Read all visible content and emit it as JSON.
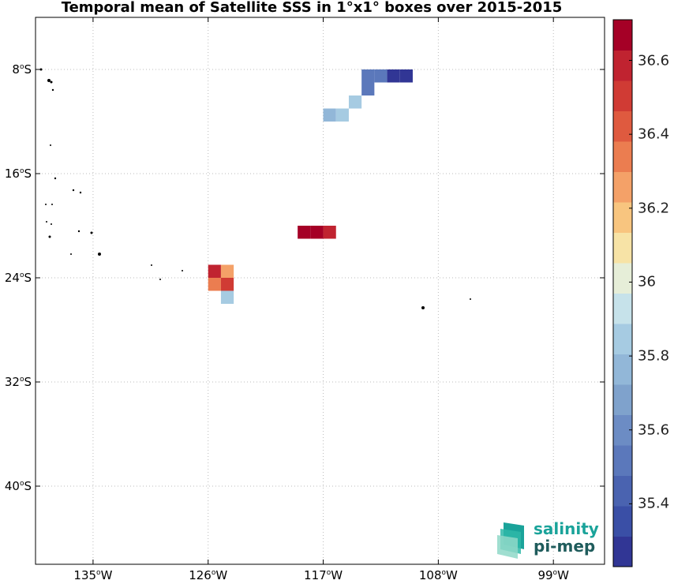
{
  "title": "Temporal mean of Satellite SSS in 1°x1° boxes over 2015-2015",
  "y_ticks": [
    {
      "deg": "8",
      "hemi": "S",
      "lat": -8
    },
    {
      "deg": "16",
      "hemi": "S",
      "lat": -16
    },
    {
      "deg": "24",
      "hemi": "S",
      "lat": -24
    },
    {
      "deg": "32",
      "hemi": "S",
      "lat": -32
    },
    {
      "deg": "40",
      "hemi": "S",
      "lat": -40
    }
  ],
  "x_ticks": [
    {
      "deg": "135",
      "hemi": "W",
      "lon": -135
    },
    {
      "deg": "126",
      "hemi": "W",
      "lon": -126
    },
    {
      "deg": "117",
      "hemi": "W",
      "lon": -117
    },
    {
      "deg": "108",
      "hemi": "W",
      "lon": -108
    },
    {
      "deg": "99",
      "hemi": "W",
      "lon": -99
    }
  ],
  "colorbar": {
    "min": 35.23,
    "max": 36.71,
    "tick_labels": [
      "36.6",
      "36.4",
      "36.2",
      "36",
      "35.8",
      "35.6",
      "35.4"
    ],
    "tick_values": [
      36.6,
      36.4,
      36.2,
      36.0,
      35.8,
      35.6,
      35.4
    ],
    "colors": [
      "#313695",
      "#3a4fa6",
      "#4a63b0",
      "#5b78bb",
      "#6c8cc4",
      "#7fa2cc",
      "#92b7d8",
      "#a6cbe2",
      "#c6e2ea",
      "#e6eed8",
      "#f7e3a6",
      "#f8c57f",
      "#f4a168",
      "#eb7d50",
      "#df5a3f",
      "#d03b34",
      "#c02330",
      "#a50026"
    ]
  },
  "chart_data": {
    "type": "heatmap",
    "title": "Temporal mean of Satellite SSS in 1°x1° boxes over 2015-2015",
    "units": "SSS",
    "xlim_lon": [
      -139.5,
      -95
    ],
    "ylim_lat": [
      -46,
      -4
    ],
    "grid": true,
    "cells": [
      {
        "lon": -113.5,
        "lat": -8.5,
        "value": 35.5
      },
      {
        "lon": -112.5,
        "lat": -8.5,
        "value": 35.5
      },
      {
        "lon": -111.5,
        "lat": -8.5,
        "value": 35.3
      },
      {
        "lon": -110.5,
        "lat": -8.5,
        "value": 35.3
      },
      {
        "lon": -113.5,
        "lat": -9.5,
        "value": 35.55
      },
      {
        "lon": -114.5,
        "lat": -10.5,
        "value": 35.87
      },
      {
        "lon": -116.5,
        "lat": -11.5,
        "value": 35.75
      },
      {
        "lon": -115.5,
        "lat": -11.5,
        "value": 35.85
      },
      {
        "lon": -118.5,
        "lat": -20.5,
        "value": 36.68
      },
      {
        "lon": -117.5,
        "lat": -20.5,
        "value": 36.68
      },
      {
        "lon": -116.5,
        "lat": -20.5,
        "value": 36.6
      },
      {
        "lon": -125.5,
        "lat": -23.5,
        "value": 36.62
      },
      {
        "lon": -124.5,
        "lat": -23.5,
        "value": 36.27
      },
      {
        "lon": -125.5,
        "lat": -24.5,
        "value": 36.35
      },
      {
        "lon": -124.5,
        "lat": -24.5,
        "value": 36.5
      },
      {
        "lon": -124.5,
        "lat": -25.5,
        "value": 35.87
      }
    ]
  },
  "logo": {
    "line1": "salinity",
    "line2": "pi-mep"
  }
}
